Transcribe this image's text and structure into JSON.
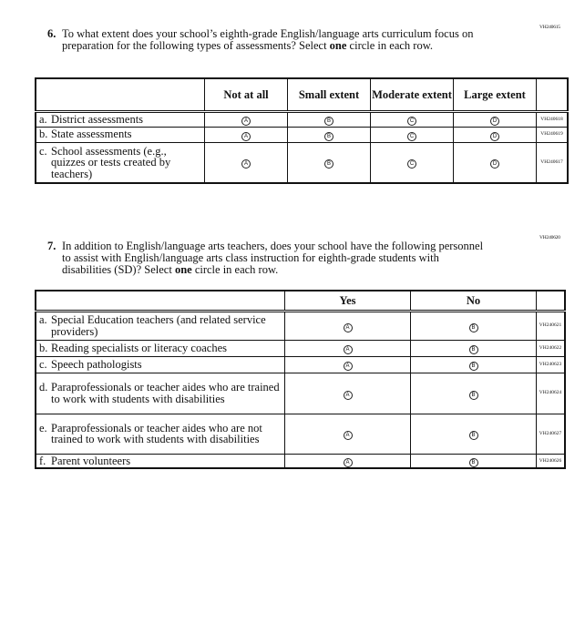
{
  "q6": {
    "code": "VH240615",
    "number": "6.",
    "text_before": "To what extent does your school’s eighth-grade English/language arts curriculum focus on preparation for the following types of assessments? Select ",
    "text_bold": "one",
    "text_after": " circle in each row.",
    "columns": [
      "Not at all",
      "Small extent",
      "Moderate extent",
      "Large extent"
    ],
    "bubble_letters": [
      "A",
      "B",
      "C",
      "D"
    ],
    "rows": [
      {
        "letter": "a.",
        "label": "District assessments",
        "code": "VH240618"
      },
      {
        "letter": "b.",
        "label": "State assessments",
        "code": "VH240619"
      },
      {
        "letter": "c.",
        "label": "School assessments (e.g., quizzes or tests created by teachers)",
        "code": "VH240617"
      }
    ]
  },
  "q7": {
    "code": "VH240620",
    "number": "7.",
    "text_before": "In addition to English/language arts teachers, does your school have the following personnel to assist with English/language arts class instruction for eighth-grade students with disabilities (SD)? Select ",
    "text_bold": "one",
    "text_after": " circle in each row.",
    "columns": [
      "Yes",
      "No"
    ],
    "bubble_letters": [
      "A",
      "B"
    ],
    "rows": [
      {
        "letter": "a.",
        "label": "Special Education teachers (and related service providers)",
        "code": "VH240621"
      },
      {
        "letter": "b.",
        "label": "Reading specialists or literacy coaches",
        "code": "VH240622"
      },
      {
        "letter": "c.",
        "label": "Speech pathologists",
        "code": "VH240623"
      },
      {
        "letter": "d.",
        "label": "Paraprofessionals or teacher aides who are trained to work with students with disabilities",
        "code": "VH240624"
      },
      {
        "letter": "e.",
        "label": "Paraprofessionals or teacher aides who are not trained to work with students with disabilities",
        "code": "VH240627"
      },
      {
        "letter": "f.",
        "label": "Parent volunteers",
        "code": "VH240626"
      }
    ]
  }
}
